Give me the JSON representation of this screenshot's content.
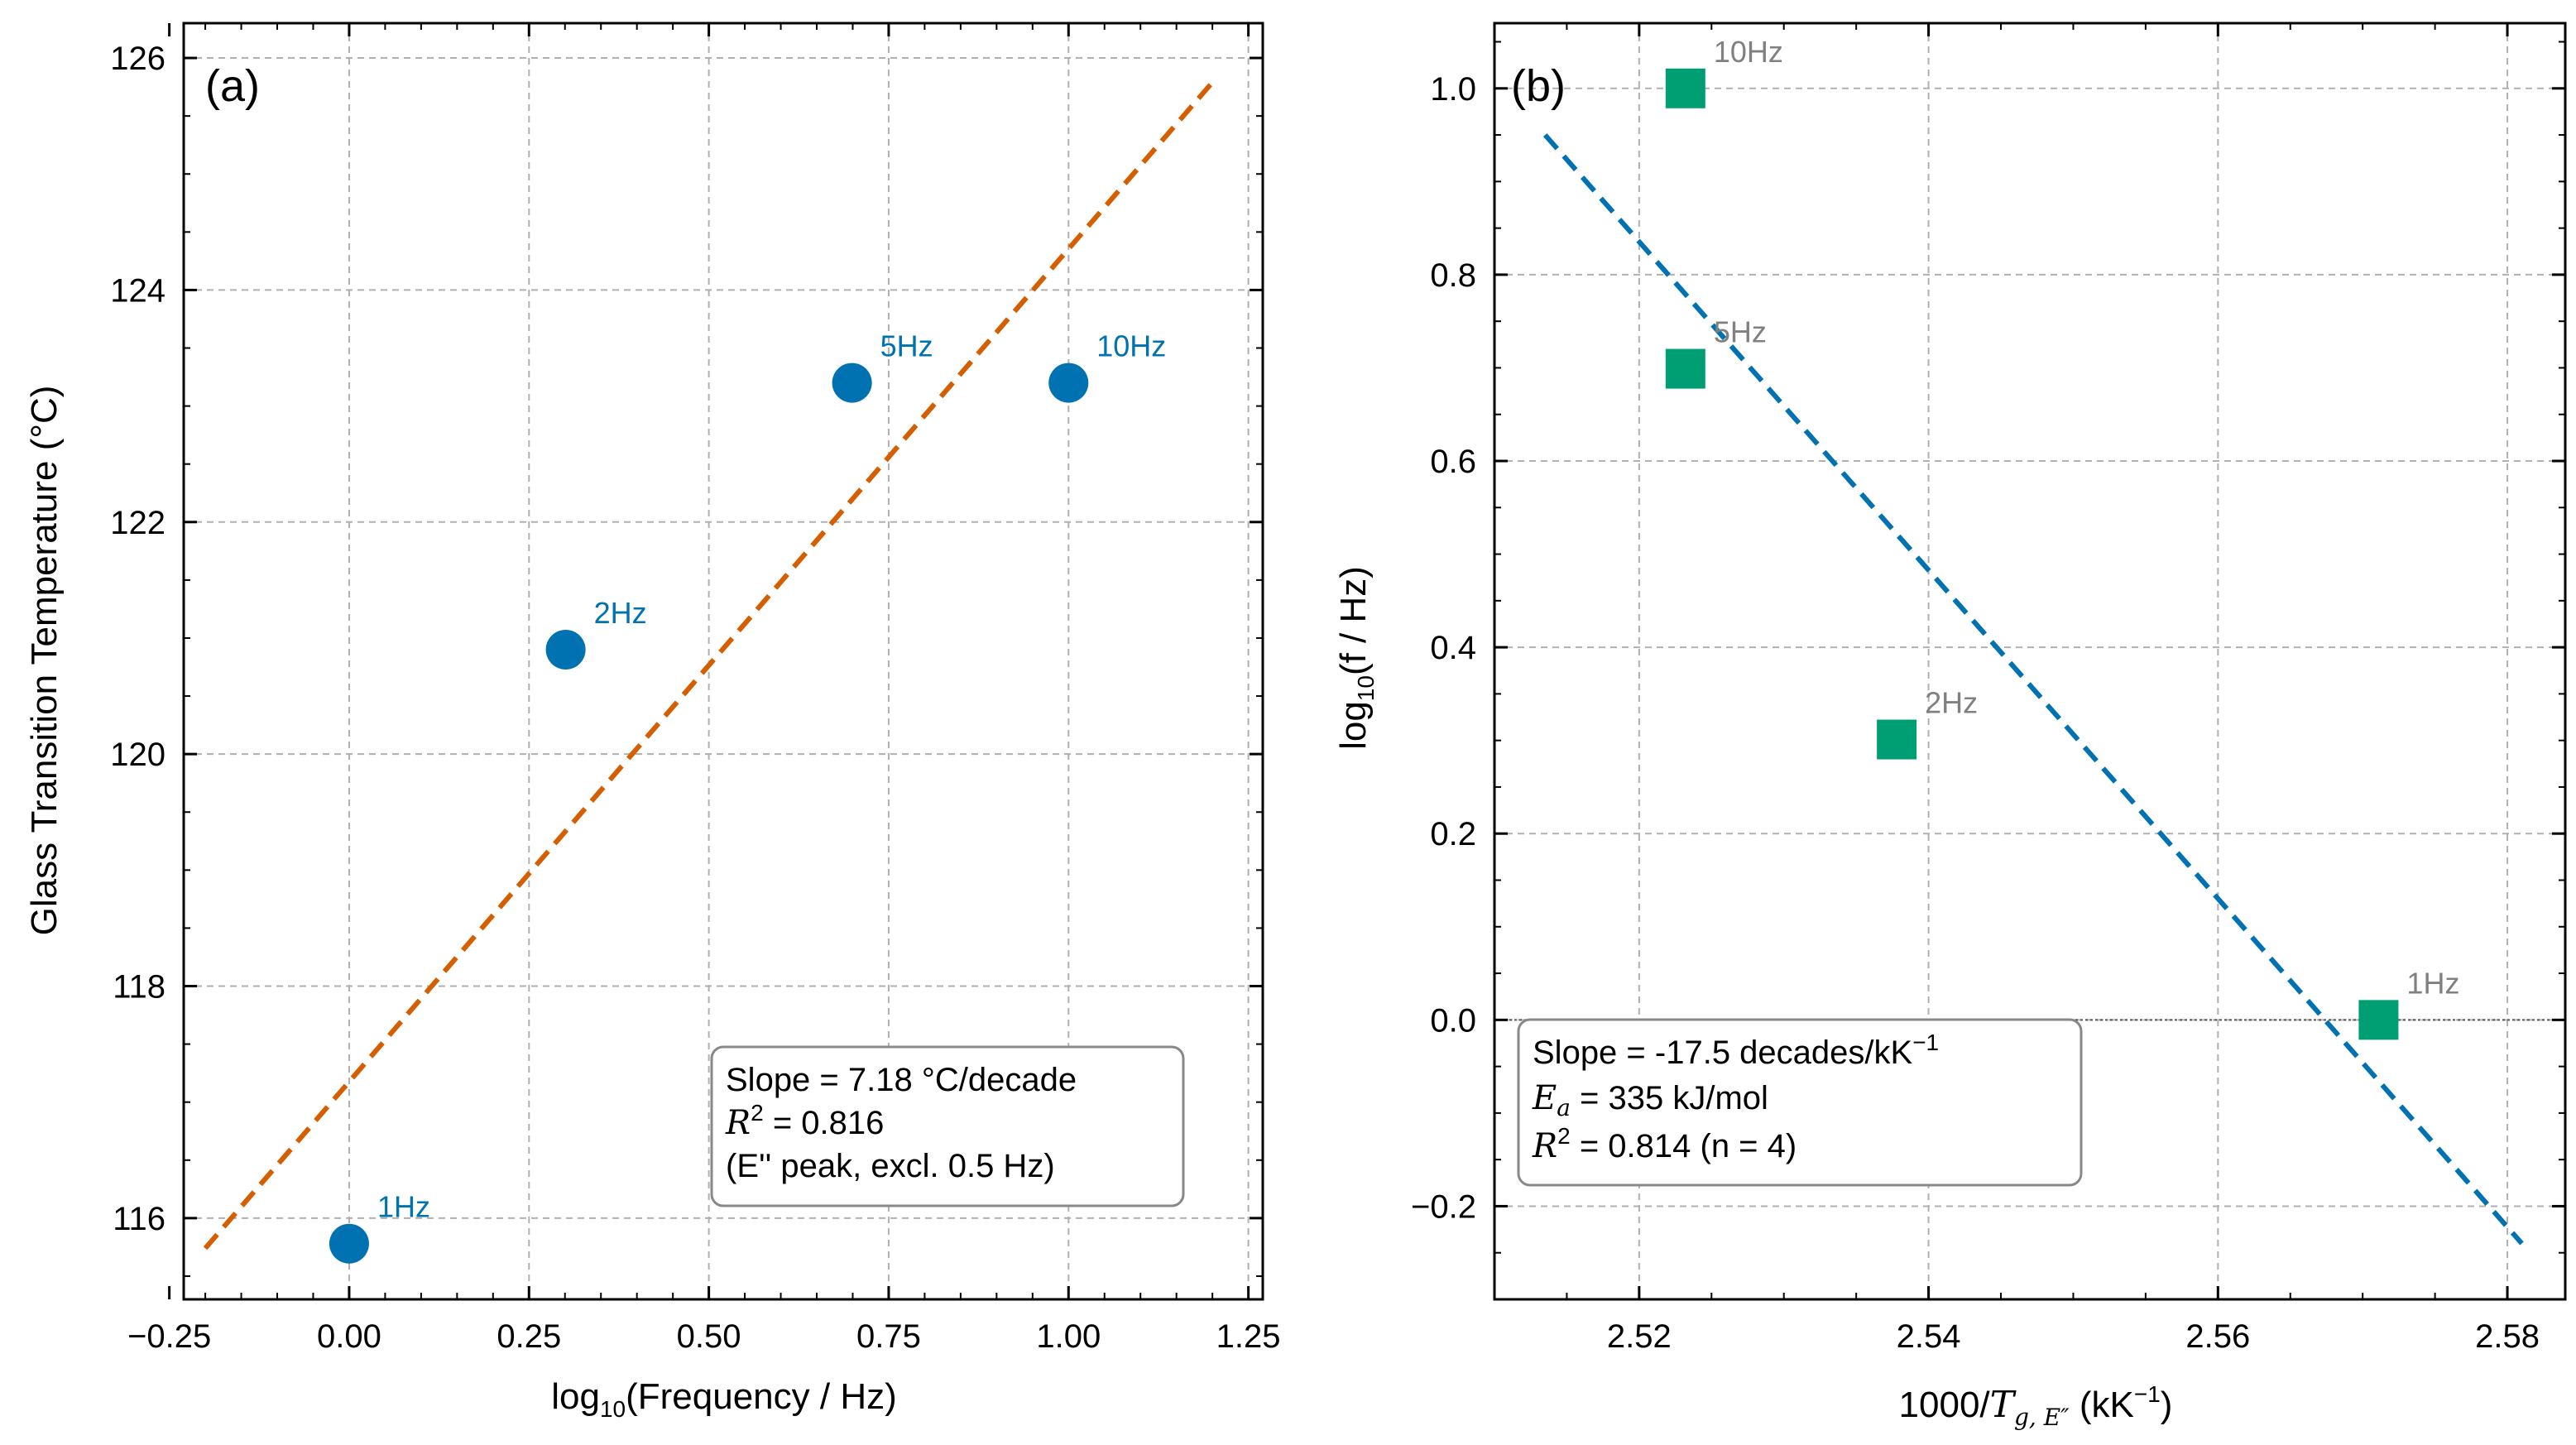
{
  "colors": {
    "a_points": "#0072B2",
    "a_fit": "#D55E00",
    "b_points": "#009E73",
    "b_fit": "#0072B2",
    "b_point_labels": "#808080",
    "grid": "#b0b0b0"
  },
  "chart_data": [
    {
      "type": "scatter",
      "panel": "(a)",
      "xlabel_prefix": "log",
      "xlabel_sub": "10",
      "xlabel_suffix": "(Frequency / Hz)",
      "ylabel": "Glass Transition Temperature (°C)",
      "xlim": [
        -0.23,
        1.27
      ],
      "ylim": [
        115.3,
        126.3
      ],
      "xticks": [
        -0.25,
        0.0,
        0.25,
        0.5,
        0.75,
        1.0,
        1.25
      ],
      "xtick_labels": [
        "−0.25",
        "0.00",
        "0.25",
        "0.50",
        "0.75",
        "1.00",
        "1.25"
      ],
      "yticks": [
        116,
        118,
        120,
        122,
        124,
        126
      ],
      "ytick_labels": [
        "116",
        "118",
        "120",
        "122",
        "124",
        "126"
      ],
      "grid": true,
      "points": [
        {
          "label": "1Hz",
          "x": 0.0,
          "y": 115.78
        },
        {
          "label": "2Hz",
          "x": 0.301,
          "y": 120.9
        },
        {
          "label": "5Hz",
          "x": 0.699,
          "y": 123.2
        },
        {
          "label": "10Hz",
          "x": 1.0,
          "y": 123.2
        }
      ],
      "fit_line": {
        "x": [
          -0.2,
          1.2
        ],
        "y": [
          115.74,
          125.79
        ],
        "style": "dashed"
      },
      "annotation": {
        "line1": "Slope = 7.18 °C/decade",
        "r2_symbol": "R",
        "r2_sup": "2",
        "r2_value": " = 0.816",
        "line3": "(E'' peak, excl. 0.5 Hz)",
        "placement": "bottom-right"
      }
    },
    {
      "type": "scatter",
      "panel": "(b)",
      "xlabel_prefix": "1000/",
      "xlabel_T": "T",
      "xlabel_sub": "g, E″",
      "xlabel_suffix": " (kK",
      "xlabel_sup": "−1",
      "xlabel_close": ")",
      "ylabel_prefix": "log",
      "ylabel_sub": "10",
      "ylabel_suffix": "(f / Hz)",
      "xlim": [
        2.51,
        2.584
      ],
      "ylim": [
        -0.3,
        1.07
      ],
      "xticks": [
        2.52,
        2.54,
        2.56,
        2.58
      ],
      "xtick_labels": [
        "2.52",
        "2.54",
        "2.56",
        "2.58"
      ],
      "yticks": [
        -0.2,
        0.0,
        0.2,
        0.4,
        0.6,
        0.8,
        1.0
      ],
      "ytick_labels": [
        "−0.2",
        "0.0",
        "0.2",
        "0.4",
        "0.6",
        "0.8",
        "1.0"
      ],
      "grid": true,
      "zero_line": true,
      "points": [
        {
          "label": "10Hz",
          "x": 2.5232,
          "y": 1.0
        },
        {
          "label": "5Hz",
          "x": 2.5232,
          "y": 0.699
        },
        {
          "label": "2Hz",
          "x": 2.5378,
          "y": 0.301
        },
        {
          "label": "1Hz",
          "x": 2.5711,
          "y": 0.0
        }
      ],
      "fit_line": {
        "x": [
          2.5135,
          2.581
        ],
        "y": [
          0.95,
          -0.24
        ],
        "style": "dashed"
      },
      "annotation": {
        "line1_prefix": "Slope = -17.5 decades/kK",
        "line1_sup": "−1",
        "ea_symbol": "E",
        "ea_sub": "a",
        "ea_value": " = 335 kJ/mol",
        "r2_symbol": "R",
        "r2_sup": "2",
        "r2_value": " = 0.814 (n = 4)",
        "placement": "bottom-left"
      }
    }
  ]
}
